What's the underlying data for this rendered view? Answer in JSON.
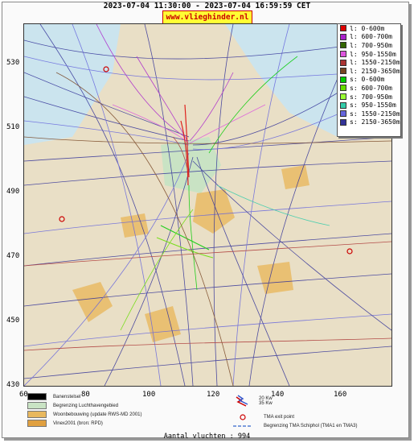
{
  "header": {
    "title": "2023-07-04 11:30:00 - 2023-07-04 16:59:59 CET",
    "brand": "www.vlieghinder.nl"
  },
  "map": {
    "y_ticks": [
      "530",
      "510",
      "490",
      "470",
      "450",
      "430"
    ],
    "x_ticks": [
      "60",
      "80",
      "100",
      "120",
      "140",
      "160"
    ],
    "colors": {
      "land": "#e9dfc6",
      "water": "#cbe4ee",
      "airport": "#c9e3c4",
      "urban": "#e8b85e"
    }
  },
  "legend": [
    {
      "label": "l: 0-600m",
      "color": "#dd0000"
    },
    {
      "label": "l: 600-700m",
      "color": "#aa22cc"
    },
    {
      "label": "l: 700-950m",
      "color": "#336600"
    },
    {
      "label": "l: 950-1550m",
      "color": "#dd55dd"
    },
    {
      "label": "l: 1550-2150m",
      "color": "#aa3333"
    },
    {
      "label": "l: 2150-3650m",
      "color": "#774422"
    },
    {
      "label": "s: 0-600m",
      "color": "#00cc00"
    },
    {
      "label": "s: 600-700m",
      "color": "#66dd00"
    },
    {
      "label": "s: 700-950m",
      "color": "#99ff33"
    },
    {
      "label": "s: 950-1550m",
      "color": "#33ccaa"
    },
    {
      "label": "s: 1550-2150m",
      "color": "#6666dd"
    },
    {
      "label": "s: 2150-3650m",
      "color": "#333399"
    }
  ],
  "bottom_legend": {
    "runway": "Banenstelsel",
    "airport_area": "Begrenzing Luchthavengebied",
    "housing": "Woonbebouwing (update RWS-MD 2001)",
    "vinex": "Vinex2001 (bron: RPD)",
    "wind_20": "20 Kw",
    "wind_35": "35 Kw",
    "tma_exit": "TMA exit point",
    "tma_boundary": "Begrenzing TMA Schiphol  (TMA1 en TMA3)"
  },
  "footer": {
    "count_text": "Aantal vluchten : 994"
  }
}
